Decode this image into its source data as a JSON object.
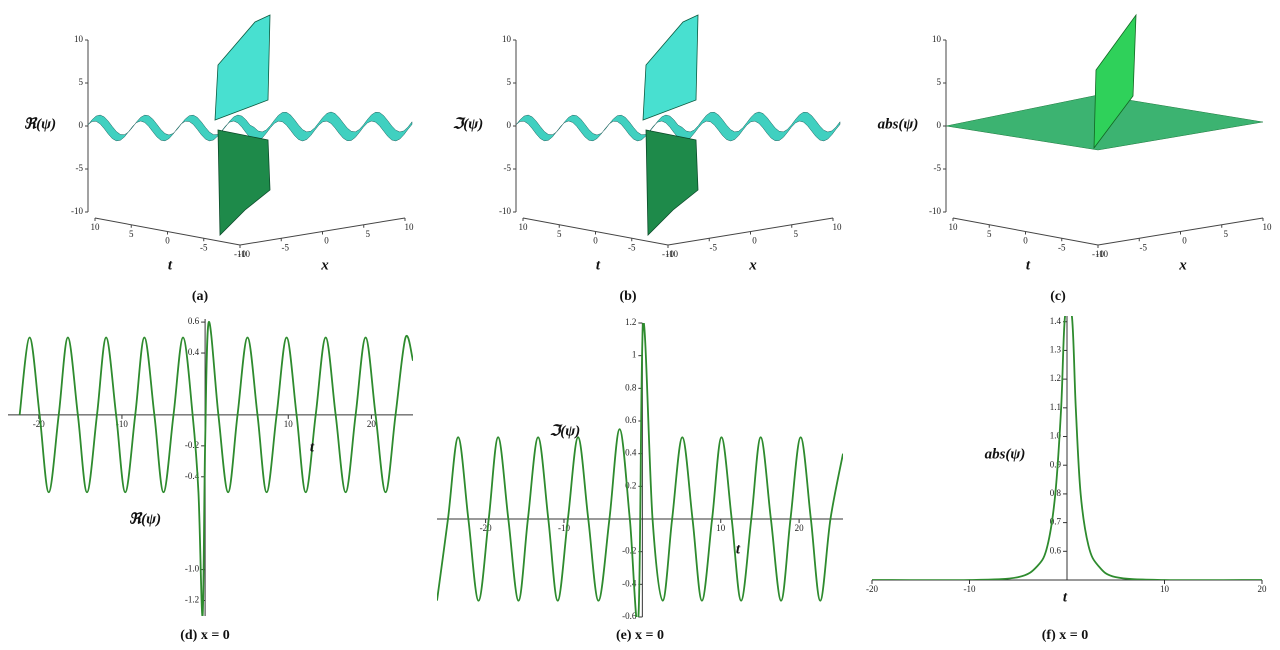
{
  "chart_data": [
    {
      "type": "surface3d",
      "zlabel": "ℜ(ψ)",
      "ylabel": "t",
      "xlabel": "x",
      "caption": "(a)",
      "zlim": [
        -10,
        10
      ],
      "zticks": [
        10,
        5,
        0,
        -5,
        -10
      ],
      "ylim": [
        -10,
        10
      ],
      "yticks": [
        10,
        5,
        0,
        -5,
        -10
      ],
      "xlim": [
        -10,
        10
      ],
      "xticks": [
        -10,
        -5,
        0,
        5,
        10
      ]
    },
    {
      "type": "surface3d",
      "zlabel": "ℑ(ψ)",
      "ylabel": "t",
      "xlabel": "x",
      "caption": "(b)",
      "zlim": [
        -10,
        10
      ],
      "zticks": [
        10,
        5,
        0,
        -5,
        -10
      ],
      "ylim": [
        -10,
        10
      ],
      "yticks": [
        10,
        5,
        0,
        -5,
        -10
      ],
      "xlim": [
        -10,
        10
      ],
      "xticks": [
        -10,
        -5,
        0,
        5,
        10
      ]
    },
    {
      "type": "surface3d",
      "zlabel": "abs(ψ)",
      "ylabel": "t",
      "xlabel": "x",
      "caption": "(c)",
      "zlim": [
        -10,
        10
      ],
      "zticks": [
        10,
        5,
        0,
        -5,
        -10
      ],
      "ylim": [
        -10,
        10
      ],
      "yticks": [
        10,
        5,
        0,
        -5,
        -10
      ],
      "xlim": [
        -10,
        10
      ],
      "xticks": [
        -10,
        -5,
        0,
        5,
        10
      ]
    },
    {
      "type": "line",
      "ylabel": "ℜ(ψ)",
      "xlabel": "t",
      "caption": "(d) x = 0",
      "color": "#2e8b2e",
      "xlim": [
        -23.7,
        25
      ],
      "xticks": [
        -20,
        -10,
        10,
        20
      ],
      "ylim": [
        -1.3,
        0.62
      ],
      "yticks": [
        0.6,
        0.4,
        -0.2,
        -0.4,
        {
          "value": -1,
          "label": "-1.0"
        },
        -1.2
      ],
      "x": [
        -22.3,
        -21.1,
        -19.9,
        -18.8,
        -17.6,
        -16.5,
        -15.3,
        -14.2,
        -13.0,
        -11.9,
        -10.7,
        -9.6,
        -8.4,
        -7.3,
        -6.1,
        -5.0,
        -3.8,
        -2.65,
        -1.5,
        -0.8,
        -0.3,
        0,
        0.44,
        1.6,
        2.77,
        3.9,
        5.1,
        6.3,
        7.4,
        8.6,
        9.8,
        11.0,
        12.1,
        13.3,
        14.5,
        15.7,
        16.9,
        18.1,
        19.3,
        20.5,
        21.7,
        22.9,
        24.1,
        25
      ],
      "values": [
        0,
        0.5,
        0,
        -0.5,
        0,
        0.5,
        0,
        -0.5,
        0,
        0.5,
        0,
        -0.5,
        0,
        0.5,
        0,
        -0.5,
        0,
        0.5,
        0,
        -0.5,
        -1.3,
        -0.2,
        0.6,
        0,
        -0.5,
        0,
        0.5,
        0,
        -0.5,
        0,
        0.5,
        0,
        -0.5,
        0,
        0.5,
        0,
        -0.5,
        0,
        0.5,
        0,
        -0.5,
        0,
        0.5,
        0.35
      ]
    },
    {
      "type": "line",
      "ylabel": "ℑ(ψ)",
      "xlabel": "t",
      "caption": "(e) x = 0",
      "color": "#2e8b2e",
      "xlim": [
        -26.2,
        25.6
      ],
      "xticks": [
        -20,
        -10,
        10,
        20
      ],
      "ylim": [
        -0.6,
        1.2
      ],
      "yticks": [
        1.2,
        1,
        0.8,
        0.6,
        0.4,
        0.2,
        -0.2,
        -0.4,
        -0.6
      ],
      "x": [
        -26.2,
        -24.8,
        -23.5,
        -22.2,
        -20.9,
        -19.6,
        -18.4,
        -17.1,
        -15.8,
        -14.6,
        -13.3,
        -12.0,
        -10.8,
        -9.5,
        -8.2,
        -6.9,
        -5.6,
        -4.2,
        -2.9,
        -1.6,
        -0.5,
        0.1,
        1.3,
        2.6,
        3.8,
        5.1,
        6.4,
        7.6,
        8.9,
        10.1,
        11.4,
        12.6,
        13.9,
        15.1,
        16.4,
        17.7,
        18.9,
        20.2,
        21.5,
        22.7,
        24.0,
        25.6
      ],
      "values": [
        -0.5,
        0,
        0.5,
        0,
        -0.5,
        0,
        0.5,
        0,
        -0.5,
        0,
        0.5,
        0,
        -0.5,
        0,
        0.5,
        0,
        -0.5,
        0,
        0.55,
        0,
        -0.6,
        1.2,
        0,
        -0.5,
        0,
        0.5,
        0,
        -0.5,
        0,
        0.5,
        0,
        -0.5,
        0,
        0.5,
        0,
        -0.5,
        0,
        0.5,
        0,
        -0.5,
        0,
        0.4
      ]
    },
    {
      "type": "line",
      "ylabel": "abs(ψ)",
      "xlabel": "t",
      "caption": "(f) x = 0",
      "color": "#2e8b2e",
      "xlim": [
        -20,
        20
      ],
      "xticks": [
        -20,
        -10,
        10,
        20
      ],
      "ylim": [
        0.5,
        1.42
      ],
      "yticks": [
        1.4,
        1.3,
        1.2,
        1.1,
        {
          "value": 1,
          "label": "1.0"
        },
        0.9,
        0.8,
        0.7,
        0.6
      ],
      "x": [
        -20,
        -10,
        -5,
        -3,
        -2,
        -1.2,
        -0.6,
        -0.2,
        0.5,
        0.9,
        1.4,
        2.2,
        3.2,
        5,
        10,
        20
      ],
      "values": [
        0.5,
        0.5,
        0.51,
        0.55,
        0.62,
        0.8,
        1.1,
        1.42,
        1.42,
        1.1,
        0.8,
        0.62,
        0.55,
        0.51,
        0.5,
        0.5
      ]
    }
  ]
}
